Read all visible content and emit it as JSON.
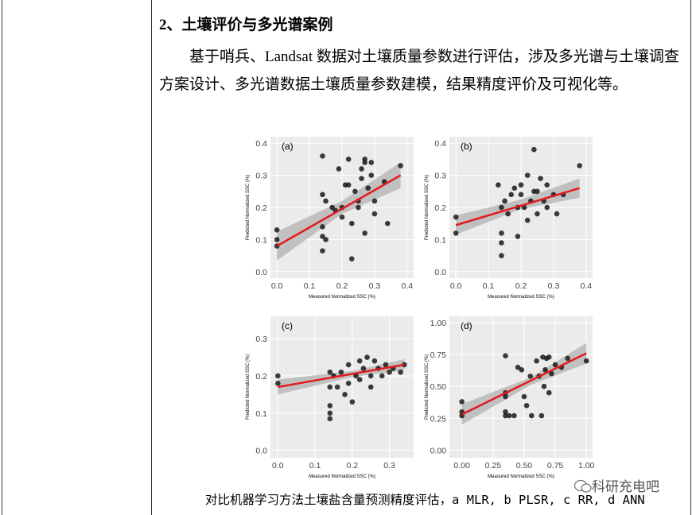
{
  "heading": "2、土壤评价与多光谱案例",
  "paragraph": "基于哨兵、Landsat 数据对土壤质量参数进行评估，涉及多光谱与土壤调查方案设计、多光谱数据土壤质量参数建模，结果精度评价及可视化等。",
  "caption": "对比机器学习方法土壤盐含量预测精度评估，a MLR, b PLSR, c RR, d ANN",
  "watermark": "科研充电吧",
  "chart_data": [
    {
      "type": "scatter",
      "label": "(a)",
      "x_label": "Measured Normalized SSC (%)",
      "y_label": "Predicted Normalized SSC (%)",
      "color": "#1a1a1a",
      "fit_color": "#e41a1c",
      "band_color": "#b5b5b5",
      "xlim": [
        -0.02,
        0.42
      ],
      "ylim": [
        -0.02,
        0.42
      ],
      "xticks": [
        {
          "value": 0,
          "label": "0.0"
        },
        0.1,
        0.2,
        0.3,
        0.4
      ],
      "yticks": [
        {
          "value": 0,
          "label": "0.0"
        },
        0.1,
        0.2,
        0.3,
        0.4
      ],
      "x": [
        0,
        0,
        0,
        0.14,
        0.14,
        0.15,
        0.14,
        0.14,
        0.15,
        0.14,
        0.17,
        0.18,
        0.2,
        0.2,
        0.21,
        0.22,
        0.22,
        0.23,
        0.23,
        0.24,
        0.25,
        0.25,
        0.26,
        0.27,
        0.27,
        0.27,
        0.28,
        0.29,
        0.29,
        0.3,
        0.3,
        0.33,
        0.34,
        0.38,
        0.19,
        0.26
      ],
      "values": [
        0.13,
        0.1,
        0.08,
        0.36,
        0.24,
        0.22,
        0.14,
        0.11,
        0.1,
        0.065,
        0.2,
        0.19,
        0.2,
        0.17,
        0.27,
        0.27,
        0.35,
        0.15,
        0.04,
        0.25,
        0.22,
        0.2,
        0.32,
        0.34,
        0.35,
        0.12,
        0.26,
        0.3,
        0.34,
        0.22,
        0.18,
        0.28,
        0.15,
        0.33,
        0.32,
        0.29
      ],
      "fit": {
        "x": [
          0,
          0.38
        ],
        "values": [
          0.08,
          0.3
        ]
      },
      "band": {
        "x": [
          0,
          0.2,
          0.38
        ],
        "lower": [
          0.035,
          0.18,
          0.26
        ],
        "upper": [
          0.125,
          0.22,
          0.34
        ]
      }
    },
    {
      "type": "scatter",
      "label": "(b)",
      "x_label": "Measured Normalized SSC (%)",
      "y_label": "Predicted Normalized SSC (%)",
      "color": "#1a1a1a",
      "fit_color": "#e41a1c",
      "band_color": "#b5b5b5",
      "xlim": [
        -0.02,
        0.42
      ],
      "ylim": [
        -0.02,
        0.42
      ],
      "xticks": [
        {
          "value": 0,
          "label": "0.0"
        },
        0.1,
        0.2,
        0.3,
        0.4
      ],
      "yticks": [
        {
          "value": 0,
          "label": "0.0"
        },
        0.1,
        0.2,
        0.3,
        0.4
      ],
      "x": [
        0,
        0,
        0.13,
        0.14,
        0.14,
        0.14,
        0.14,
        0.15,
        0.16,
        0.17,
        0.18,
        0.19,
        0.19,
        0.2,
        0.21,
        0.22,
        0.22,
        0.23,
        0.24,
        0.24,
        0.25,
        0.26,
        0.27,
        0.28,
        0.28,
        0.3,
        0.31,
        0.33,
        0.38,
        0.2,
        0.25
      ],
      "values": [
        0.17,
        0.12,
        0.27,
        0.2,
        0.12,
        0.09,
        0.05,
        0.22,
        0.18,
        0.24,
        0.26,
        0.2,
        0.11,
        0.27,
        0.2,
        0.3,
        0.16,
        0.22,
        0.38,
        0.25,
        0.18,
        0.29,
        0.22,
        0.27,
        0.2,
        0.24,
        0.18,
        0.24,
        0.33,
        0.24,
        0.25
      ],
      "fit": {
        "x": [
          0,
          0.38
        ],
        "values": [
          0.145,
          0.26
        ]
      },
      "band": {
        "x": [
          0,
          0.2,
          0.38
        ],
        "lower": [
          0.115,
          0.195,
          0.23
        ],
        "upper": [
          0.175,
          0.225,
          0.29
        ]
      }
    },
    {
      "type": "scatter",
      "label": "(c)",
      "x_label": "Measured Normalized SSC (%)",
      "y_label": "Predicted Normalized SSC (%)",
      "color": "#1a1a1a",
      "fit_color": "#e41a1c",
      "band_color": "#b5b5b5",
      "xlim": [
        -0.02,
        0.365
      ],
      "ylim": [
        -0.02,
        0.36
      ],
      "xticks": [
        {
          "value": 0,
          "label": "0.0"
        },
        0.1,
        0.2,
        0.3
      ],
      "yticks": [
        {
          "value": 0,
          "label": "0.0"
        },
        0.1,
        0.2,
        0.3
      ],
      "x": [
        0,
        0,
        0.14,
        0.14,
        0.14,
        0.14,
        0.14,
        0.15,
        0.16,
        0.17,
        0.18,
        0.19,
        0.19,
        0.2,
        0.21,
        0.22,
        0.22,
        0.23,
        0.24,
        0.25,
        0.26,
        0.27,
        0.28,
        0.29,
        0.3,
        0.31,
        0.33,
        0.34,
        0.25
      ],
      "values": [
        0.2,
        0.18,
        0.21,
        0.17,
        0.12,
        0.1,
        0.085,
        0.2,
        0.17,
        0.21,
        0.15,
        0.23,
        0.18,
        0.13,
        0.2,
        0.24,
        0.19,
        0.22,
        0.25,
        0.2,
        0.24,
        0.22,
        0.2,
        0.23,
        0.21,
        0.22,
        0.21,
        0.23,
        0.17
      ],
      "fit": {
        "x": [
          0,
          0.34
        ],
        "values": [
          0.17,
          0.23
        ]
      },
      "band": {
        "x": [
          0,
          0.2,
          0.34
        ],
        "lower": [
          0.15,
          0.197,
          0.215
        ],
        "upper": [
          0.19,
          0.213,
          0.245
        ]
      }
    },
    {
      "type": "scatter",
      "label": "(d)",
      "x_label": "Measured Normalized SSC (%)",
      "y_label": "Predicted Normalized SSC (%)",
      "color": "#1a1a1a",
      "fit_color": "#e41a1c",
      "band_color": "#b5b5b5",
      "xlim": [
        -0.1,
        1.05
      ],
      "ylim": [
        -0.06,
        1.05
      ],
      "xticks": [
        {
          "value": 0,
          "label": "0.00"
        },
        {
          "value": 0.25,
          "label": "0.25"
        },
        {
          "value": 0.5,
          "label": "0.50"
        },
        {
          "value": 0.75,
          "label": "0.75"
        },
        {
          "value": 1,
          "label": "1.00"
        }
      ],
      "yticks": [
        {
          "value": 0,
          "label": "0.00"
        },
        {
          "value": 0.25,
          "label": "0.25"
        },
        {
          "value": 0.5,
          "label": "0.50"
        },
        {
          "value": 0.75,
          "label": "0.75"
        },
        {
          "value": 1,
          "label": "1.00"
        }
      ],
      "x": [
        0,
        0,
        0,
        0.35,
        0.35,
        0.35,
        0.35,
        0.35,
        0.38,
        0.42,
        0.45,
        0.48,
        0.5,
        0.52,
        0.55,
        0.56,
        0.6,
        0.62,
        0.65,
        0.66,
        0.67,
        0.68,
        0.7,
        0.72,
        0.75,
        0.8,
        0.85,
        1.0,
        0.64,
        0.7
      ],
      "values": [
        0.38,
        0.3,
        0.27,
        0.74,
        0.45,
        0.42,
        0.3,
        0.27,
        0.27,
        0.27,
        0.65,
        0.63,
        0.42,
        0.35,
        0.58,
        0.27,
        0.7,
        0.58,
        0.73,
        0.5,
        0.63,
        0.72,
        0.73,
        0.6,
        0.67,
        0.65,
        0.72,
        0.7,
        0.27,
        0.45
      ],
      "fit": {
        "x": [
          0,
          1
        ],
        "values": [
          0.28,
          0.76
        ]
      },
      "band": {
        "x": [
          0,
          0.55,
          1
        ],
        "lower": [
          0.2,
          0.51,
          0.68
        ],
        "upper": [
          0.36,
          0.57,
          0.84
        ]
      }
    }
  ]
}
